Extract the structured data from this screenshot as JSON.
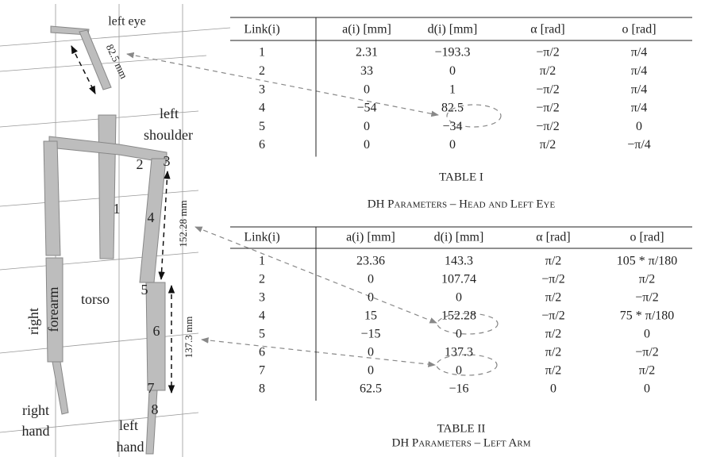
{
  "figure": {
    "labels": [
      "left eye",
      "82.5 mm",
      "left",
      "shoulder",
      "1",
      "2",
      "3",
      "4",
      "5",
      "6",
      "7",
      "8",
      "torso",
      "right",
      "forearm",
      "right",
      "hand",
      "left",
      "hand",
      "152.28 mm",
      "137.3 mm"
    ]
  },
  "tables": [
    {
      "headers": [
        "Link(i)",
        "a(i) [mm]",
        "d(i) [mm]",
        "α [rad]",
        "o [rad]"
      ],
      "rows": [
        [
          "1",
          "2.31",
          "−193.3",
          "−π/2",
          "π/4"
        ],
        [
          "2",
          "33",
          "0",
          "π/2",
          "π/4"
        ],
        [
          "3",
          "0",
          "1",
          "−π/2",
          "π/4"
        ],
        [
          "4",
          "−54",
          "82.5",
          "−π/2",
          "π/4"
        ],
        [
          "5",
          "0",
          "−34",
          "−π/2",
          "0"
        ],
        [
          "6",
          "0",
          "0",
          "π/2",
          "−π/4"
        ]
      ],
      "caption": "TABLE I",
      "title": "DH Parameters – Head and Left Eye"
    },
    {
      "headers": [
        "Link(i)",
        "a(i) [mm]",
        "d(i) [mm]",
        "α [rad]",
        "o [rad]"
      ],
      "rows": [
        [
          "1",
          "23.36",
          "143.3",
          "π/2",
          "105 * π/180"
        ],
        [
          "2",
          "0",
          "107.74",
          "−π/2",
          "π/2"
        ],
        [
          "3",
          "0",
          "0",
          "π/2",
          "−π/2"
        ],
        [
          "4",
          "15",
          "152.28",
          "−π/2",
          "75 * π/180"
        ],
        [
          "5",
          "−15",
          "0",
          "π/2",
          "0"
        ],
        [
          "6",
          "0",
          "137.3",
          "π/2",
          "−π/2"
        ],
        [
          "7",
          "0",
          "0",
          "π/2",
          "π/2"
        ],
        [
          "8",
          "62.5",
          "−16",
          "0",
          "0"
        ]
      ],
      "caption": "TABLE II",
      "title": "DH Parameters – Left Arm"
    }
  ]
}
